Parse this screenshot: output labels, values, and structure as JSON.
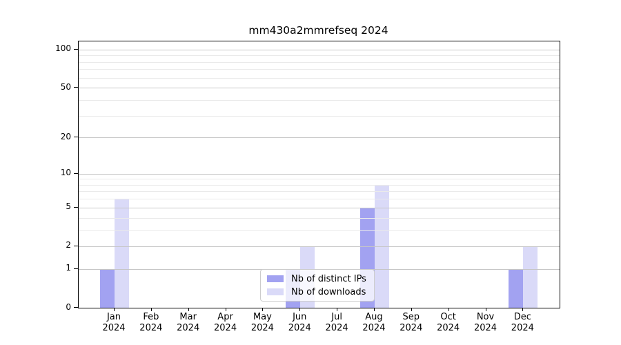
{
  "chart_data": {
    "type": "bar",
    "title": "mm430a2mmrefseq 2024",
    "categories": [
      "Jan",
      "Feb",
      "Mar",
      "Apr",
      "May",
      "Jun",
      "Jul",
      "Aug",
      "Sep",
      "Oct",
      "Nov",
      "Dec"
    ],
    "category_year": "2024",
    "series": [
      {
        "name": "Nb of distinct IPs",
        "color": "#a2a2f1",
        "values": [
          1,
          0,
          0,
          0,
          0,
          1,
          0,
          5,
          0,
          0,
          0,
          1
        ]
      },
      {
        "name": "Nb of downloads",
        "color": "#dadaf8",
        "values": [
          6,
          0,
          0,
          0,
          0,
          2,
          0,
          8,
          0,
          0,
          0,
          2
        ]
      }
    ],
    "xlabel": "",
    "ylabel": "",
    "y_scale": "log1p",
    "y_axis": {
      "min": 0,
      "max": 116,
      "ticks": [
        0,
        1,
        2,
        5,
        10,
        20,
        50,
        100
      ],
      "minor_ticks": [
        3,
        4,
        6,
        7,
        8,
        9,
        30,
        40,
        60,
        70,
        80,
        90
      ]
    },
    "grid": "on",
    "grid_above_bars": true,
    "legend_position": "lower center"
  },
  "colors": {
    "major_grid": "#c6c6c6",
    "minor_grid": "#eaeaea",
    "spine": "#000000",
    "legend_border": "#cccccc",
    "background": "#ffffff"
  }
}
